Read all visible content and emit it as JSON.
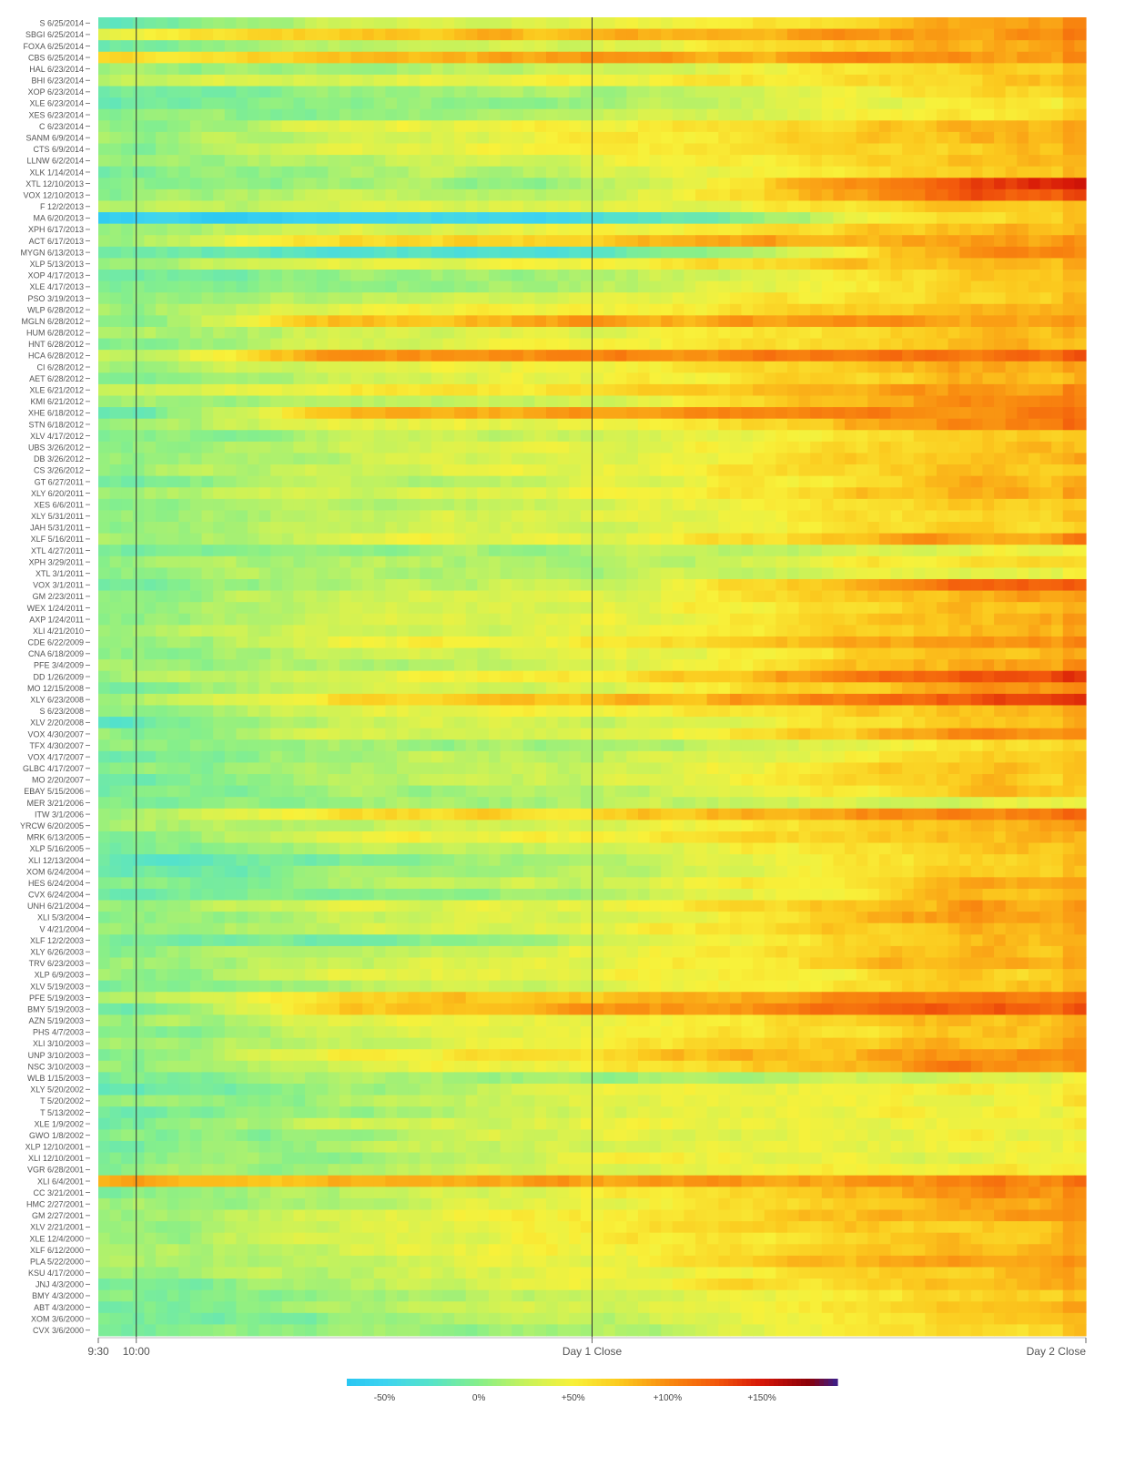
{
  "chart_data": {
    "type": "heatmap",
    "title": "",
    "xlabel": "",
    "ylabel": "",
    "rows": [
      "S 6/25/2014",
      "SBGI 6/25/2014",
      "FOXA 6/25/2014",
      "CBS 6/25/2014",
      "HAL 6/23/2014",
      "BHI 6/23/2014",
      "XOP 6/23/2014",
      "XLE 6/23/2014",
      "XES 6/23/2014",
      "C 6/23/2014",
      "SANM 6/9/2014",
      "CTS 6/9/2014",
      "LLNW 6/2/2014",
      "XLK 1/14/2014",
      "XTL 12/10/2013",
      "VOX 12/10/2013",
      "F 12/2/2013",
      "MA 6/20/2013",
      "XPH 6/17/2013",
      "ACT 6/17/2013",
      "MYGN 6/13/2013",
      "XLP 5/13/2013",
      "XOP 4/17/2013",
      "XLE 4/17/2013",
      "PSO 3/19/2013",
      "WLP 6/28/2012",
      "MGLN 6/28/2012",
      "HUM 6/28/2012",
      "HNT 6/28/2012",
      "HCA 6/28/2012",
      "CI 6/28/2012",
      "AET 6/28/2012",
      "XLE 6/21/2012",
      "KMI 6/21/2012",
      "XHE 6/18/2012",
      "STN 6/18/2012",
      "XLV 4/17/2012",
      "UBS 3/26/2012",
      "DB 3/26/2012",
      "CS 3/26/2012",
      "GT 6/27/2011",
      "XLY 6/20/2011",
      "XES 6/6/2011",
      "XLY 5/31/2011",
      "JAH 5/31/2011",
      "XLF 5/16/2011",
      "XTL 4/27/2011",
      "XPH 3/29/2011",
      "XTL 3/1/2011",
      "VOX 3/1/2011",
      "GM 2/23/2011",
      "WEX 1/24/2011",
      "AXP 1/24/2011",
      "XLI 4/21/2010",
      "CDE 6/22/2009",
      "CNA 6/18/2009",
      "PFE 3/4/2009",
      "DD 1/26/2009",
      "MO 12/15/2008",
      "XLY 6/23/2008",
      "S 6/23/2008",
      "XLV 2/20/2008",
      "VOX 4/30/2007",
      "TFX 4/30/2007",
      "VOX 4/17/2007",
      "GLBC 4/17/2007",
      "MO 2/20/2007",
      "EBAY 5/15/2006",
      "MER 3/21/2006",
      "ITW 3/1/2006",
      "YRCW 6/20/2005",
      "MRK 6/13/2005",
      "XLP 5/16/2005",
      "XLI 12/13/2004",
      "XOM 6/24/2004",
      "HES 6/24/2004",
      "CVX 6/24/2004",
      "UNH 6/21/2004",
      "XLI 5/3/2004",
      "V 4/21/2004",
      "XLF 12/2/2003",
      "XLY 6/26/2003",
      "TRV 6/23/2003",
      "XLP 6/9/2003",
      "XLV 5/19/2003",
      "PFE 5/19/2003",
      "BMY 5/19/2003",
      "AZN 5/19/2003",
      "PHS 4/7/2003",
      "XLI 3/10/2003",
      "UNP 3/10/2003",
      "NSC 3/10/2003",
      "WLB 1/15/2003",
      "XLY 5/20/2002",
      "T 5/20/2002",
      "T 5/13/2002",
      "XLE 1/9/2002",
      "GWO 1/8/2002",
      "XLP 12/10/2001",
      "XLI 12/10/2001",
      "VGR 6/28/2001",
      "XLI 6/4/2001",
      "CC 3/21/2001",
      "HMC 2/27/2001",
      "GM 2/27/2001",
      "XLV 2/21/2001",
      "XLE 12/4/2000",
      "XLF 6/12/2000",
      "PLA 5/22/2000",
      "KSU 4/17/2000",
      "JNJ 4/3/2000",
      "BMY 4/3/2000",
      "ABT 4/3/2000",
      "XOM 3/6/2000",
      "CVX 3/6/2000"
    ],
    "x_labels": [
      "9:30",
      "10:00",
      "Day 1 Close",
      "Day 2 Close"
    ],
    "x_label_times": [
      0,
      30,
      390,
      780
    ],
    "x_range": [
      0,
      780
    ],
    "columns_per_row": 86,
    "value_unit": "percent change",
    "color_scale": {
      "stops": [
        -70,
        -50,
        -25,
        0,
        25,
        50,
        75,
        100,
        125,
        150,
        175,
        190
      ],
      "colors": [
        "#29c6f2",
        "#3dd3f0",
        "#56e3c8",
        "#86ef8a",
        "#c8f25a",
        "#f8f13a",
        "#fbc91e",
        "#f98b10",
        "#f35a0c",
        "#d61608",
        "#8a0008",
        "#3a1e8c"
      ]
    },
    "colorbar": {
      "ticks": [
        "-50%",
        "0%",
        "+50%",
        "+100%",
        "+150%"
      ],
      "tick_values": [
        -50,
        0,
        50,
        100,
        150
      ],
      "range": [
        -70,
        190
      ]
    },
    "vertical_lines_at": [
      30,
      390
    ],
    "sparse_values_note": "",
    "base_levels": {
      "pre_1000": [
        -20,
        45,
        -10,
        60,
        5,
        18,
        -10,
        -14,
        -5,
        8,
        10,
        4,
        8,
        -8,
        -5,
        6,
        15,
        -58,
        10,
        15,
        -5,
        5,
        -10,
        -5,
        8,
        12,
        5,
        10,
        -5,
        25,
        10,
        0,
        20,
        8,
        -15,
        10,
        -5,
        8,
        4,
        12,
        -5,
        12,
        -2,
        6,
        2,
        15,
        -8,
        6,
        6,
        -4,
        10,
        8,
        5,
        10,
        0,
        0,
        10,
        10,
        -5,
        12,
        5,
        -20,
        6,
        0,
        -8,
        -2,
        -5,
        -10,
        -5,
        15,
        5,
        4,
        -5,
        -15,
        -15,
        -8,
        -8,
        15,
        -5,
        10,
        -5,
        0,
        5,
        8,
        -5,
        15,
        -12,
        5,
        -5,
        5,
        -5,
        5,
        -5,
        -15,
        5,
        -5,
        -10,
        0,
        -5,
        0,
        0,
        85,
        0,
        10,
        5,
        0,
        10,
        15,
        10,
        5,
        -5,
        -5,
        -5,
        -5,
        -5
      ],
      "mid_day1": [
        30,
        75,
        25,
        80,
        18,
        40,
        5,
        0,
        8,
        45,
        35,
        40,
        25,
        15,
        10,
        20,
        30,
        -48,
        35,
        70,
        -30,
        40,
        5,
        10,
        25,
        45,
        82,
        30,
        30,
        95,
        40,
        30,
        50,
        25,
        88,
        40,
        20,
        30,
        25,
        30,
        15,
        35,
        20,
        25,
        30,
        35,
        5,
        15,
        18,
        20,
        32,
        30,
        30,
        30,
        45,
        30,
        15,
        40,
        30,
        70,
        40,
        25,
        30,
        10,
        20,
        15,
        20,
        10,
        10,
        60,
        25,
        40,
        15,
        0,
        5,
        15,
        10,
        35,
        25,
        30,
        -5,
        25,
        25,
        40,
        20,
        70,
        75,
        40,
        25,
        25,
        55,
        40,
        12,
        5,
        12,
        10,
        30,
        5,
        20,
        10,
        15,
        85,
        25,
        20,
        40,
        30,
        35,
        35,
        25,
        25,
        20,
        10,
        15,
        5,
        5
      ],
      "late_day1": [
        35,
        80,
        30,
        90,
        30,
        45,
        12,
        8,
        25,
        50,
        45,
        50,
        35,
        30,
        15,
        25,
        35,
        -40,
        40,
        75,
        -25,
        45,
        15,
        20,
        30,
        45,
        90,
        35,
        40,
        100,
        45,
        40,
        60,
        30,
        90,
        45,
        25,
        35,
        35,
        40,
        30,
        40,
        25,
        35,
        35,
        40,
        10,
        15,
        15,
        25,
        35,
        35,
        35,
        35,
        55,
        30,
        25,
        55,
        35,
        75,
        45,
        30,
        30,
        10,
        25,
        25,
        25,
        15,
        15,
        70,
        35,
        45,
        30,
        15,
        15,
        30,
        18,
        45,
        35,
        45,
        20,
        40,
        40,
        45,
        30,
        75,
        85,
        45,
        45,
        50,
        65,
        50,
        12,
        40,
        40,
        35,
        45,
        40,
        35,
        45,
        40,
        90,
        45,
        40,
        50,
        55,
        50,
        45,
        45,
        40,
        40,
        30,
        30,
        20,
        10
      ],
      "day2": [
        90,
        100,
        85,
        95,
        70,
        75,
        60,
        55,
        58,
        80,
        80,
        75,
        78,
        75,
        140,
        125,
        70,
        72,
        80,
        90,
        95,
        85,
        70,
        65,
        72,
        80,
        90,
        78,
        80,
        110,
        85,
        80,
        100,
        100,
        105,
        105,
        75,
        75,
        80,
        78,
        80,
        85,
        75,
        70,
        70,
        95,
        45,
        65,
        40,
        120,
        90,
        80,
        85,
        85,
        95,
        85,
        90,
        130,
        95,
        125,
        80,
        75,
        100,
        60,
        70,
        80,
        75,
        70,
        40,
        110,
        85,
        80,
        75,
        70,
        70,
        85,
        80,
        90,
        95,
        85,
        80,
        82,
        88,
        70,
        75,
        110,
        120,
        80,
        75,
        80,
        100,
        100,
        30,
        50,
        45,
        45,
        50,
        45,
        50,
        40,
        50,
        100,
        95,
        85,
        95,
        80,
        80,
        80,
        95,
        80,
        80,
        70,
        75,
        72,
        70
      ]
    }
  }
}
